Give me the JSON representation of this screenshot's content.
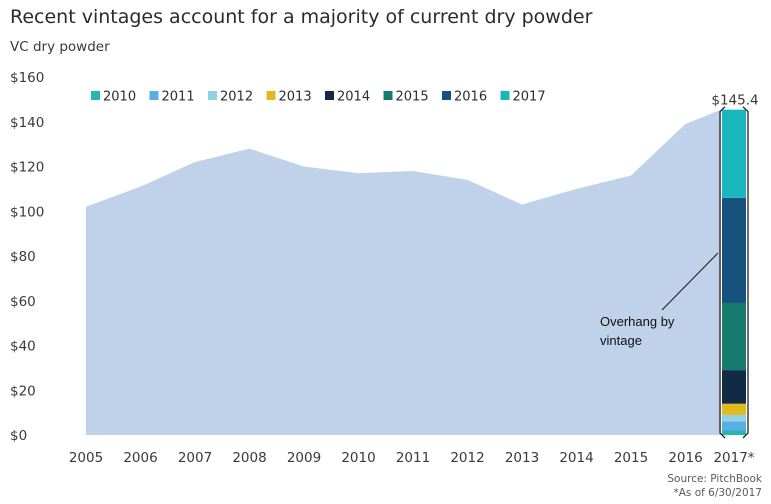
{
  "chart_data": {
    "type": "area",
    "title": "Recent vintages account for a majority of current dry powder",
    "subtitle": "VC dry powder",
    "ylim": [
      0,
      160
    ],
    "y_ticks": [
      "$0",
      "$20",
      "$40",
      "$60",
      "$80",
      "$100",
      "$120",
      "$140",
      "$160"
    ],
    "y_tick_values": [
      0,
      20,
      40,
      60,
      80,
      100,
      120,
      140,
      160
    ],
    "categories": [
      "2005",
      "2006",
      "2007",
      "2008",
      "2009",
      "2010",
      "2011",
      "2012",
      "2013",
      "2014",
      "2015",
      "2016",
      "2017*"
    ],
    "values": [
      102,
      111,
      122,
      128,
      120,
      117,
      118,
      114,
      103,
      110,
      116,
      139,
      145.4
    ],
    "area_color": "#c0d1ea",
    "stacked_bar": {
      "category": "2017*",
      "total_label": "$145.4",
      "segments": [
        {
          "vintage": "2010",
          "value": 2,
          "color": "#26b5b7"
        },
        {
          "vintage": "2011",
          "value": 4,
          "color": "#5aaee6"
        },
        {
          "vintage": "2012",
          "value": 3,
          "color": "#8fd3e3"
        },
        {
          "vintage": "2013",
          "value": 5,
          "color": "#e2b91e"
        },
        {
          "vintage": "2014",
          "value": 15,
          "color": "#112a45"
        },
        {
          "vintage": "2015",
          "value": 30,
          "color": "#177a6e"
        },
        {
          "vintage": "2016",
          "value": 47,
          "color": "#16527d"
        },
        {
          "vintage": "2017",
          "value": 39.4,
          "color": "#19b7bb"
        }
      ]
    },
    "legend": {
      "position": "top-left",
      "entries": [
        "2010",
        "2011",
        "2012",
        "2013",
        "2014",
        "2015",
        "2016",
        "2017"
      ]
    },
    "annotation": [
      "Overhang by",
      "vintage"
    ],
    "source": "Source: PitchBook",
    "note": "*As of 6/30/2017",
    "grid": false
  }
}
